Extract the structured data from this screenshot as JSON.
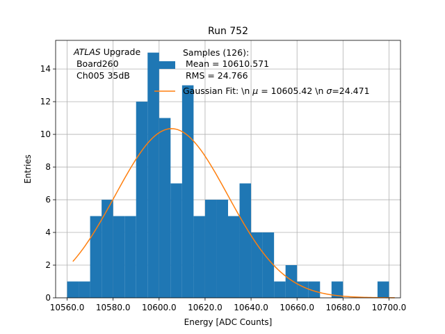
{
  "chart_data": {
    "type": "bar",
    "title": "Run 752",
    "xlabel": "Energy [ADC Counts]",
    "ylabel": "Entries",
    "xlim": [
      10555,
      10705
    ],
    "ylim": [
      0,
      15.75
    ],
    "grid": true,
    "x_ticks": [
      10560.0,
      10580.0,
      10600.0,
      10620.0,
      10640.0,
      10660.0,
      10680.0,
      10700.0
    ],
    "x_tick_labels": [
      "10560.0",
      "10580.0",
      "10600.0",
      "10620.0",
      "10640.0",
      "10660.0",
      "10680.0",
      "10700.0"
    ],
    "y_ticks": [
      0,
      2,
      4,
      6,
      8,
      10,
      12,
      14
    ],
    "y_tick_labels": [
      "0",
      "2",
      "4",
      "6",
      "8",
      "10",
      "12",
      "14"
    ],
    "histogram": {
      "bin_edges": [
        10560,
        10565,
        10570,
        10575,
        10580,
        10585,
        10590,
        10595,
        10600,
        10605,
        10610,
        10615,
        10620,
        10625,
        10630,
        10635,
        10640,
        10645,
        10650,
        10655,
        10660,
        10665,
        10670,
        10675,
        10680,
        10685,
        10690,
        10695,
        10700
      ],
      "counts": [
        1,
        1,
        5,
        6,
        5,
        5,
        12,
        15,
        11,
        7,
        13,
        5,
        6,
        6,
        5,
        7,
        4,
        4,
        1,
        2,
        1,
        1,
        0,
        1,
        0,
        0,
        0,
        1
      ],
      "color": "#1f77b4"
    },
    "fit": {
      "mean": 10605.42,
      "sigma": 24.471,
      "x_start": 10562.5,
      "x_end": 10702.5,
      "peak": 10.35,
      "color": "#ff7f0e"
    },
    "annotation": {
      "italic": "ATLAS",
      "line1_rest": " Upgrade",
      "line2": " Board260",
      "line3": " Ch005 35dB"
    },
    "legend": {
      "placement": "top-right",
      "samples_label": [
        "Samples (126):",
        " Mean = 10610.571",
        " RMS = 24.766"
      ],
      "fit_label_prefix": "Gaussian Fit: \\n ",
      "fit_mu_symbol": "μ",
      "fit_mu_text": " = 10605.42 \\n ",
      "fit_sigma_symbol": "σ",
      "fit_sigma_text": "=24.471"
    }
  }
}
